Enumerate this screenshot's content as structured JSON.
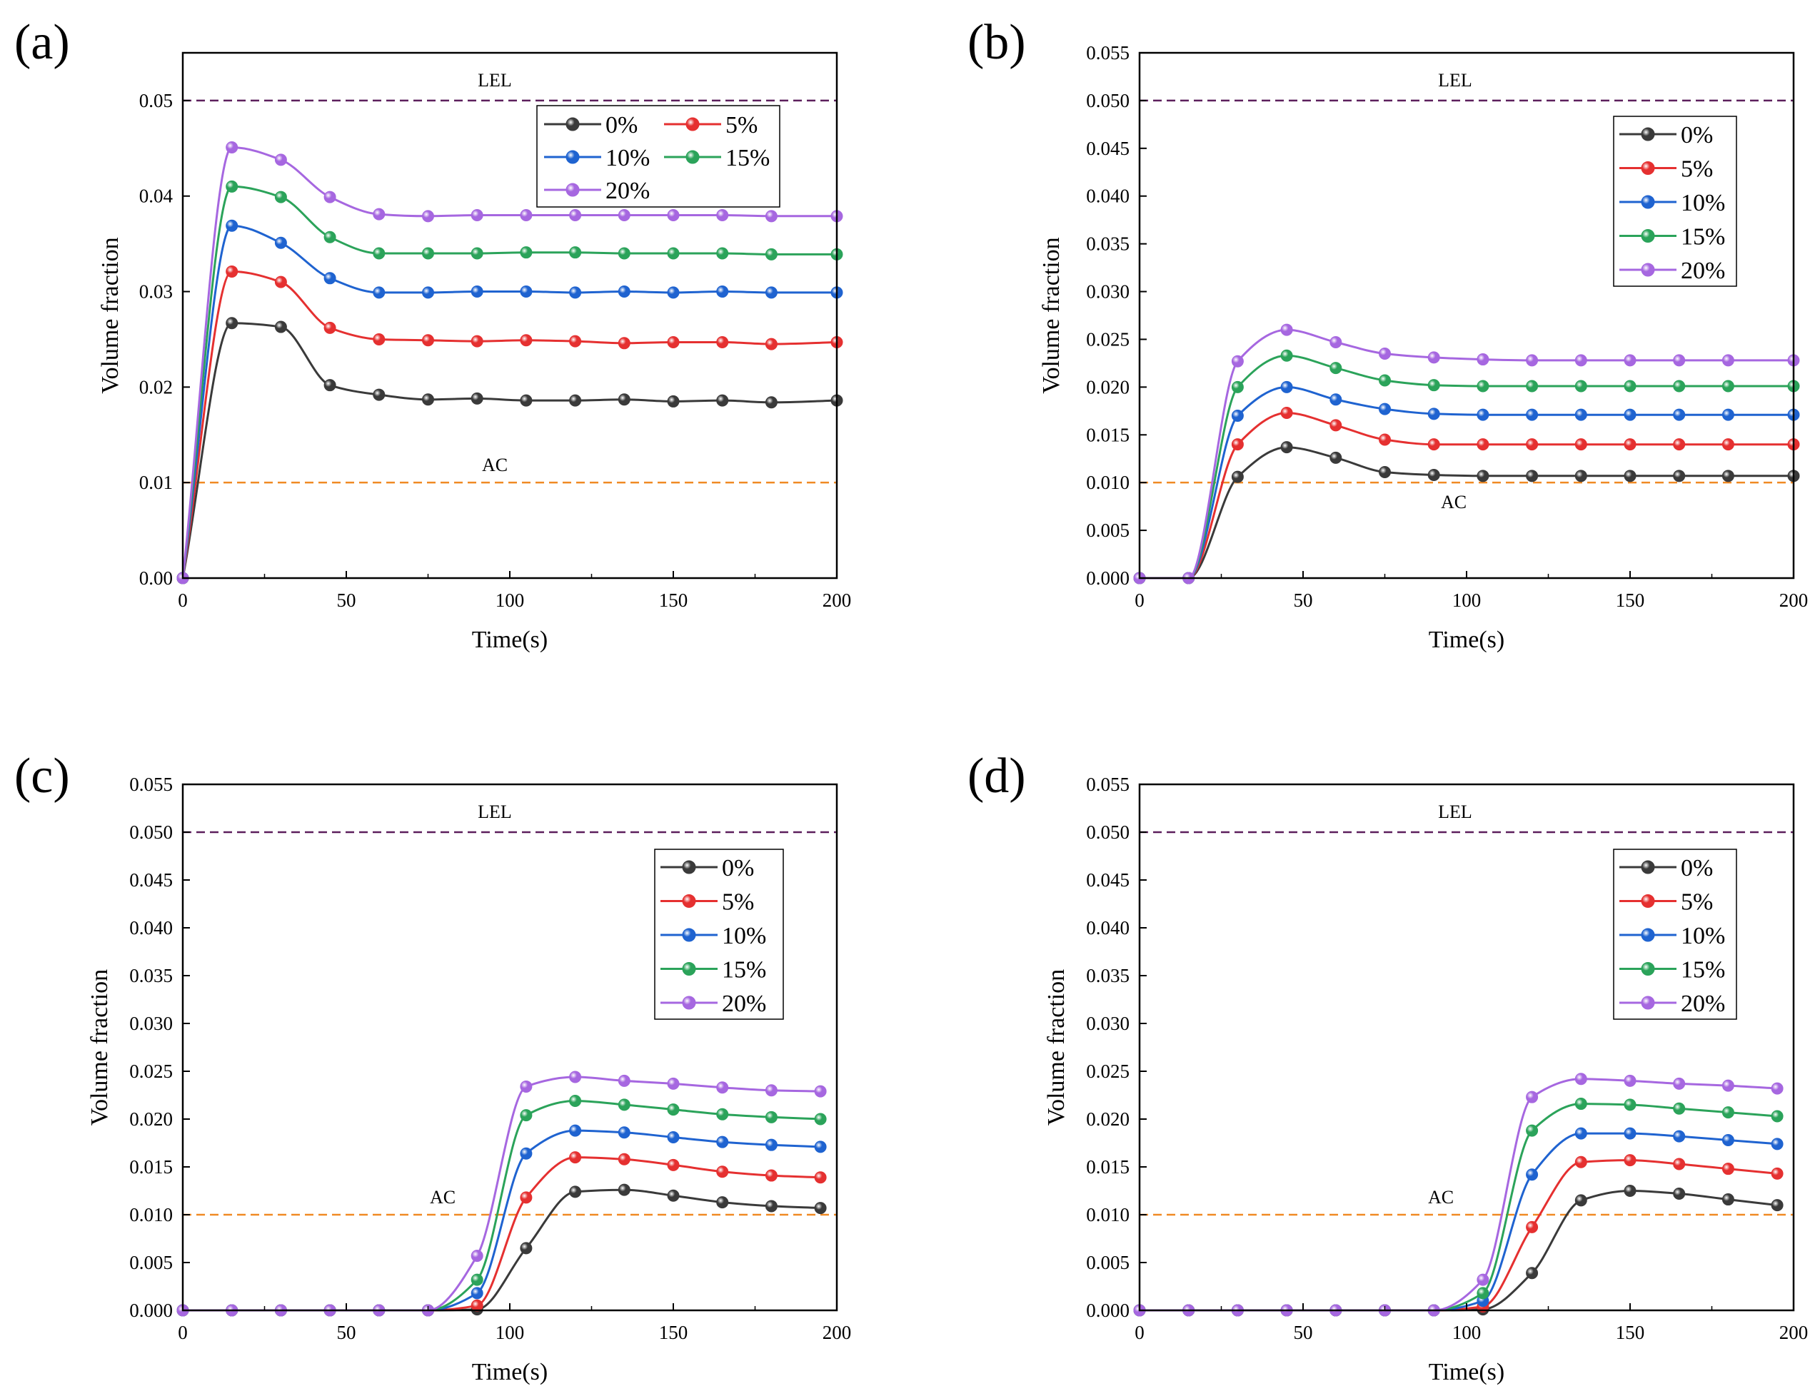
{
  "figure": {
    "series_styles": [
      {
        "name": "0%",
        "color": "#3a3a3a"
      },
      {
        "name": "5%",
        "color": "#e53030"
      },
      {
        "name": "10%",
        "color": "#1f63d0"
      },
      {
        "name": "15%",
        "color": "#2ba35a"
      },
      {
        "name": "20%",
        "color": "#a667e0"
      }
    ],
    "lel_color": "#5c1f5c",
    "ac_color": "#f08a24"
  },
  "chart_data": [
    {
      "type": "line",
      "panel": "(a)",
      "xlabel": "Time(s)",
      "ylabel": "Volume fraction",
      "xlim": [
        0,
        200
      ],
      "ylim": [
        0,
        0.055
      ],
      "x_ticks": [
        "0",
        "50",
        "100",
        "150",
        "200"
      ],
      "y_ticks": [
        "0.00",
        "0.01",
        "0.02",
        "0.03",
        "0.04",
        "0.05"
      ],
      "y_tick_values": [
        0,
        0.01,
        0.02,
        0.03,
        0.04,
        0.05
      ],
      "reference_lines": [
        {
          "label": "LEL",
          "value": 0.05,
          "style": "dashed"
        },
        {
          "label": "AC",
          "value": 0.01,
          "style": "dashed"
        }
      ],
      "legend": {
        "layout": "2col",
        "position": "top-right"
      },
      "x": [
        0,
        15,
        30,
        45,
        60,
        75,
        90,
        105,
        120,
        135,
        150,
        165,
        180,
        200
      ],
      "series": [
        {
          "name": "0%",
          "values": [
            0,
            0.0267,
            0.0263,
            0.0202,
            0.0192,
            0.0187,
            0.0188,
            0.0186,
            0.0186,
            0.0187,
            0.0185,
            0.0186,
            0.0184,
            0.0186
          ]
        },
        {
          "name": "5%",
          "values": [
            0,
            0.0321,
            0.031,
            0.0262,
            0.025,
            0.0249,
            0.0248,
            0.0249,
            0.0248,
            0.0246,
            0.0247,
            0.0247,
            0.0245,
            0.0247
          ]
        },
        {
          "name": "10%",
          "values": [
            0,
            0.0369,
            0.0351,
            0.0314,
            0.0299,
            0.0299,
            0.03,
            0.03,
            0.0299,
            0.03,
            0.0299,
            0.03,
            0.0299,
            0.0299
          ]
        },
        {
          "name": "15%",
          "values": [
            0,
            0.041,
            0.0399,
            0.0357,
            0.034,
            0.034,
            0.034,
            0.0341,
            0.0341,
            0.034,
            0.034,
            0.034,
            0.0339,
            0.0339
          ]
        },
        {
          "name": "20%",
          "values": [
            0,
            0.0451,
            0.0438,
            0.0399,
            0.0381,
            0.0379,
            0.038,
            0.038,
            0.038,
            0.038,
            0.038,
            0.038,
            0.0379,
            0.0379
          ]
        }
      ]
    },
    {
      "type": "line",
      "panel": "(b)",
      "xlabel": "Time(s)",
      "ylabel": "Volume fraction",
      "xlim": [
        0,
        200
      ],
      "ylim": [
        0,
        0.055
      ],
      "x_ticks": [
        "0",
        "50",
        "100",
        "150",
        "200"
      ],
      "y_ticks": [
        "0.000",
        "0.005",
        "0.010",
        "0.015",
        "0.020",
        "0.025",
        "0.030",
        "0.035",
        "0.040",
        "0.045",
        "0.050",
        "0.055"
      ],
      "y_tick_values": [
        0,
        0.005,
        0.01,
        0.015,
        0.02,
        0.025,
        0.03,
        0.035,
        0.04,
        0.045,
        0.05,
        0.055
      ],
      "reference_lines": [
        {
          "label": "LEL",
          "value": 0.05,
          "style": "dashed"
        },
        {
          "label": "AC",
          "value": 0.01,
          "style": "dashed"
        }
      ],
      "legend": {
        "layout": "1col",
        "position": "top-right"
      },
      "x": [
        0,
        15,
        30,
        45,
        60,
        75,
        90,
        105,
        120,
        135,
        150,
        165,
        180,
        200
      ],
      "series": [
        {
          "name": "0%",
          "values": [
            0,
            0,
            0.0106,
            0.0137,
            0.0126,
            0.0111,
            0.0108,
            0.0107,
            0.0107,
            0.0107,
            0.0107,
            0.0107,
            0.0107,
            0.0107
          ]
        },
        {
          "name": "5%",
          "values": [
            0,
            0,
            0.014,
            0.0173,
            0.016,
            0.0145,
            0.014,
            0.014,
            0.014,
            0.014,
            0.014,
            0.014,
            0.014,
            0.014
          ]
        },
        {
          "name": "10%",
          "values": [
            0,
            0,
            0.017,
            0.02,
            0.0187,
            0.0177,
            0.0172,
            0.0171,
            0.0171,
            0.0171,
            0.0171,
            0.0171,
            0.0171,
            0.0171
          ]
        },
        {
          "name": "15%",
          "values": [
            0,
            0,
            0.02,
            0.0233,
            0.022,
            0.0207,
            0.0202,
            0.0201,
            0.0201,
            0.0201,
            0.0201,
            0.0201,
            0.0201,
            0.0201
          ]
        },
        {
          "name": "20%",
          "values": [
            0,
            0,
            0.0227,
            0.026,
            0.0247,
            0.0235,
            0.0231,
            0.0229,
            0.0228,
            0.0228,
            0.0228,
            0.0228,
            0.0228,
            0.0228
          ]
        }
      ]
    },
    {
      "type": "line",
      "panel": "(c)",
      "xlabel": "Time(s)",
      "ylabel": "Volume fraction",
      "xlim": [
        0,
        200
      ],
      "ylim": [
        0,
        0.055
      ],
      "x_ticks": [
        "0",
        "50",
        "100",
        "150",
        "200"
      ],
      "y_ticks": [
        "0.000",
        "0.005",
        "0.010",
        "0.015",
        "0.020",
        "0.025",
        "0.030",
        "0.035",
        "0.040",
        "0.045",
        "0.050",
        "0.055"
      ],
      "y_tick_values": [
        0,
        0.005,
        0.01,
        0.015,
        0.02,
        0.025,
        0.03,
        0.035,
        0.04,
        0.045,
        0.05,
        0.055
      ],
      "reference_lines": [
        {
          "label": "LEL",
          "value": 0.05,
          "style": "dashed"
        },
        {
          "label": "AC",
          "value": 0.01,
          "style": "dashed"
        }
      ],
      "legend": {
        "layout": "1col",
        "position": "top-right"
      },
      "x": [
        0,
        15,
        30,
        45,
        60,
        75,
        90,
        105,
        120,
        135,
        150,
        165,
        180,
        195
      ],
      "series": [
        {
          "name": "0%",
          "values": [
            0,
            0,
            0,
            0,
            0,
            0,
            0.0001,
            0.0065,
            0.0124,
            0.0126,
            0.012,
            0.0113,
            0.0109,
            0.0107
          ]
        },
        {
          "name": "5%",
          "values": [
            0,
            0,
            0,
            0,
            0,
            0,
            0.0005,
            0.0118,
            0.016,
            0.0158,
            0.0152,
            0.0145,
            0.0141,
            0.0139
          ]
        },
        {
          "name": "10%",
          "values": [
            0,
            0,
            0,
            0,
            0,
            0,
            0.0018,
            0.0164,
            0.0188,
            0.0186,
            0.0181,
            0.0176,
            0.0173,
            0.0171
          ]
        },
        {
          "name": "15%",
          "values": [
            0,
            0,
            0,
            0,
            0,
            0,
            0.0032,
            0.0204,
            0.0219,
            0.0215,
            0.021,
            0.0205,
            0.0202,
            0.02
          ]
        },
        {
          "name": "20%",
          "values": [
            0,
            0,
            0,
            0,
            0,
            0,
            0.0057,
            0.0234,
            0.0244,
            0.024,
            0.0237,
            0.0233,
            0.023,
            0.0229
          ]
        }
      ]
    },
    {
      "type": "line",
      "panel": "(d)",
      "xlabel": "Time(s)",
      "ylabel": "Volume fraction",
      "xlim": [
        0,
        200
      ],
      "ylim": [
        0,
        0.055
      ],
      "x_ticks": [
        "0",
        "50",
        "100",
        "150",
        "200"
      ],
      "y_ticks": [
        "0.000",
        "0.005",
        "0.010",
        "0.015",
        "0.020",
        "0.025",
        "0.030",
        "0.035",
        "0.040",
        "0.045",
        "0.050",
        "0.055"
      ],
      "y_tick_values": [
        0,
        0.005,
        0.01,
        0.015,
        0.02,
        0.025,
        0.03,
        0.035,
        0.04,
        0.045,
        0.05,
        0.055
      ],
      "reference_lines": [
        {
          "label": "LEL",
          "value": 0.05,
          "style": "dashed"
        },
        {
          "label": "AC",
          "value": 0.01,
          "style": "dashed"
        }
      ],
      "legend": {
        "layout": "1col",
        "position": "top-right"
      },
      "x": [
        0,
        15,
        30,
        45,
        60,
        75,
        90,
        105,
        120,
        135,
        150,
        165,
        180,
        195
      ],
      "series": [
        {
          "name": "0%",
          "values": [
            0,
            0,
            0,
            0,
            0,
            0,
            0,
            0.0001,
            0.0039,
            0.0115,
            0.0125,
            0.0122,
            0.0116,
            0.011
          ]
        },
        {
          "name": "5%",
          "values": [
            0,
            0,
            0,
            0,
            0,
            0,
            0,
            0.0004,
            0.0087,
            0.0155,
            0.0157,
            0.0153,
            0.0148,
            0.0143
          ]
        },
        {
          "name": "10%",
          "values": [
            0,
            0,
            0,
            0,
            0,
            0,
            0,
            0.001,
            0.0142,
            0.0185,
            0.0185,
            0.0182,
            0.0178,
            0.0174
          ]
        },
        {
          "name": "15%",
          "values": [
            0,
            0,
            0,
            0,
            0,
            0,
            0,
            0.0018,
            0.0188,
            0.0216,
            0.0215,
            0.0211,
            0.0207,
            0.0203
          ]
        },
        {
          "name": "20%",
          "values": [
            0,
            0,
            0,
            0,
            0,
            0,
            0,
            0.0032,
            0.0223,
            0.0242,
            0.024,
            0.0237,
            0.0235,
            0.0232
          ]
        }
      ]
    }
  ]
}
